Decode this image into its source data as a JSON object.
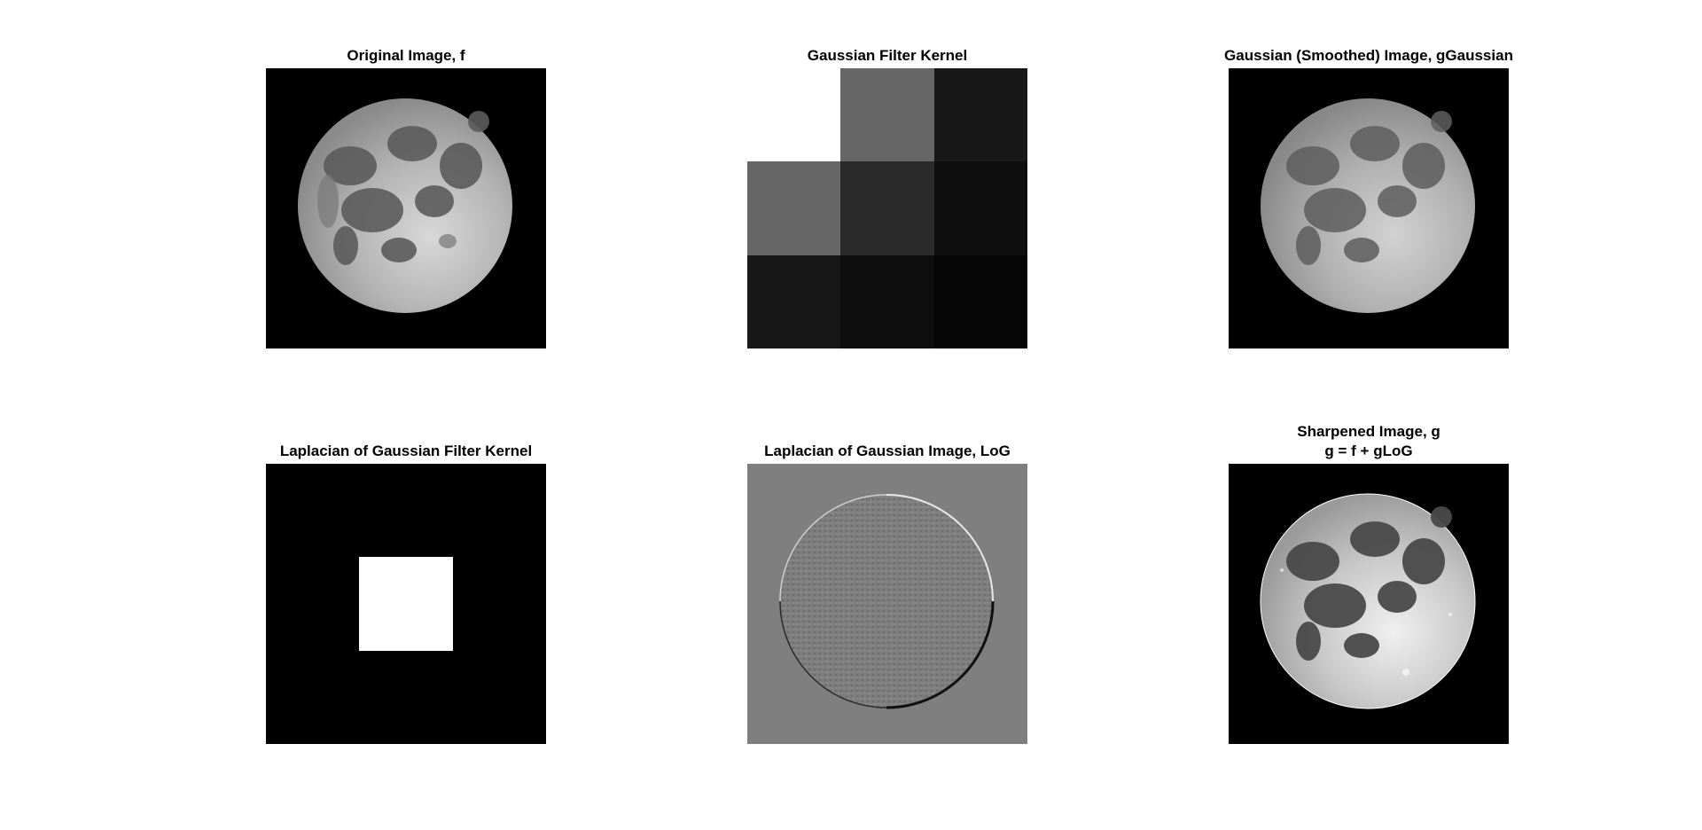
{
  "panels": [
    {
      "title": "Original Image, f"
    },
    {
      "title": "Gaussian Filter Kernel",
      "cells": [
        "#ffffff",
        "#666666",
        "#181818",
        "#666666",
        "#2a2a2a",
        "#0e0e0e",
        "#181818",
        "#0e0e0e",
        "#050505"
      ]
    },
    {
      "title": "Gaussian (Smoothed) Image, gGaussian"
    },
    {
      "title": "Laplacian of Gaussian Filter Kernel",
      "cells": [
        "#000000",
        "#000000",
        "#000000",
        "#000000",
        "#ffffff",
        "#000000",
        "#000000",
        "#000000",
        "#000000"
      ]
    },
    {
      "title": "Laplacian of Gaussian Image, LoG"
    },
    {
      "title_line1": "Sharpened Image, g",
      "title_line2": "g = f + gLoG"
    }
  ]
}
